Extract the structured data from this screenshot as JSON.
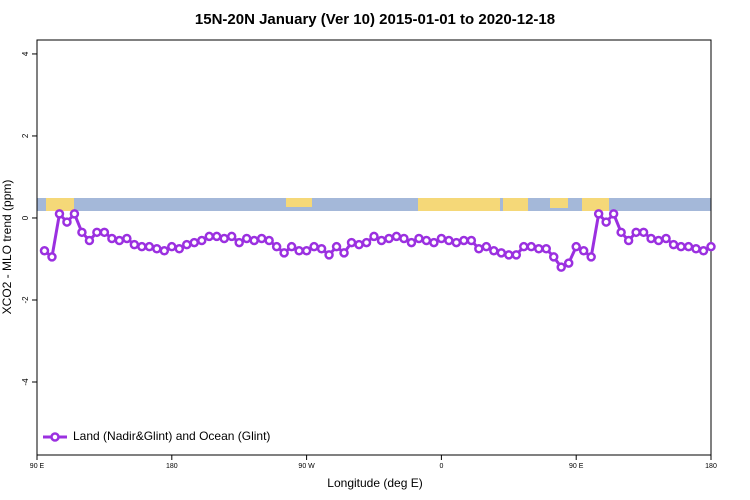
{
  "chart_data": {
    "type": "line",
    "title": "15N-20N January (Ver 10)   2015-01-01 to 2020-12-18",
    "x_label": "Longitude (deg E)",
    "y_label": "XCO2 - MLO trend (ppm)",
    "x": [
      95,
      100,
      105,
      110,
      115,
      120,
      125,
      130,
      135,
      140,
      145,
      150,
      155,
      160,
      165,
      170,
      175,
      180,
      185,
      190,
      195,
      200,
      205,
      210,
      215,
      220,
      225,
      230,
      235,
      240,
      245,
      250,
      255,
      260,
      265,
      270,
      275,
      280,
      285,
      290,
      295,
      300,
      305,
      310,
      315,
      320,
      325,
      330,
      335,
      340,
      345,
      350,
      355,
      360,
      365,
      370,
      375,
      380,
      385,
      390,
      395,
      400,
      405,
      410,
      415,
      420,
      425,
      430,
      435,
      440,
      445,
      450,
      455,
      460,
      465,
      470,
      475,
      480,
      485,
      490,
      495,
      500,
      505,
      510,
      515,
      520,
      525,
      530,
      535,
      540
    ],
    "series": [
      {
        "name": "Land (Nadir&Glint) and Ocean (Glint)",
        "color": "#9b30e0",
        "values": [
          -0.8,
          -0.95,
          0.1,
          -0.1,
          0.1,
          -0.35,
          -0.55,
          -0.35,
          -0.35,
          -0.5,
          -0.55,
          -0.5,
          -0.65,
          -0.7,
          -0.7,
          -0.75,
          -0.8,
          -0.7,
          -0.75,
          -0.65,
          -0.6,
          -0.55,
          -0.45,
          -0.45,
          -0.5,
          -0.45,
          -0.6,
          -0.5,
          -0.55,
          -0.5,
          -0.55,
          -0.7,
          -0.85,
          -0.7,
          -0.8,
          -0.8,
          -0.7,
          -0.75,
          -0.9,
          -0.7,
          -0.85,
          -0.6,
          -0.65,
          -0.6,
          -0.45,
          -0.55,
          -0.5,
          -0.45,
          -0.5,
          -0.6,
          -0.5,
          -0.55,
          -0.6,
          -0.5,
          -0.55,
          -0.6,
          -0.55,
          -0.55,
          -0.75,
          -0.7,
          -0.8,
          -0.85,
          -0.9,
          -0.9,
          -0.7,
          -0.7,
          -0.75,
          -0.75,
          -0.95,
          -1.2,
          -1.1,
          -0.7,
          -0.8,
          -0.95,
          0.1,
          -0.1,
          0.1,
          -0.35,
          -0.55,
          -0.35,
          -0.35,
          -0.5,
          -0.55,
          -0.5,
          -0.65,
          -0.7,
          -0.7,
          -0.75,
          -0.8,
          -0.7
        ]
      }
    ],
    "xlim": [
      90,
      540
    ],
    "xticks": [
      {
        "value": 90,
        "label": "90 E"
      },
      180,
      {
        "value": 270,
        "label": "90 W"
      },
      {
        "value": 360,
        "label": "0"
      },
      {
        "value": 450,
        "label": "90 E"
      },
      {
        "value": 540,
        "label": "180"
      }
    ],
    "ylim": [
      -5.78,
      4.34
    ],
    "yticks": [
      -4,
      -2,
      0,
      2,
      4
    ],
    "legend": "bottom-left"
  }
}
